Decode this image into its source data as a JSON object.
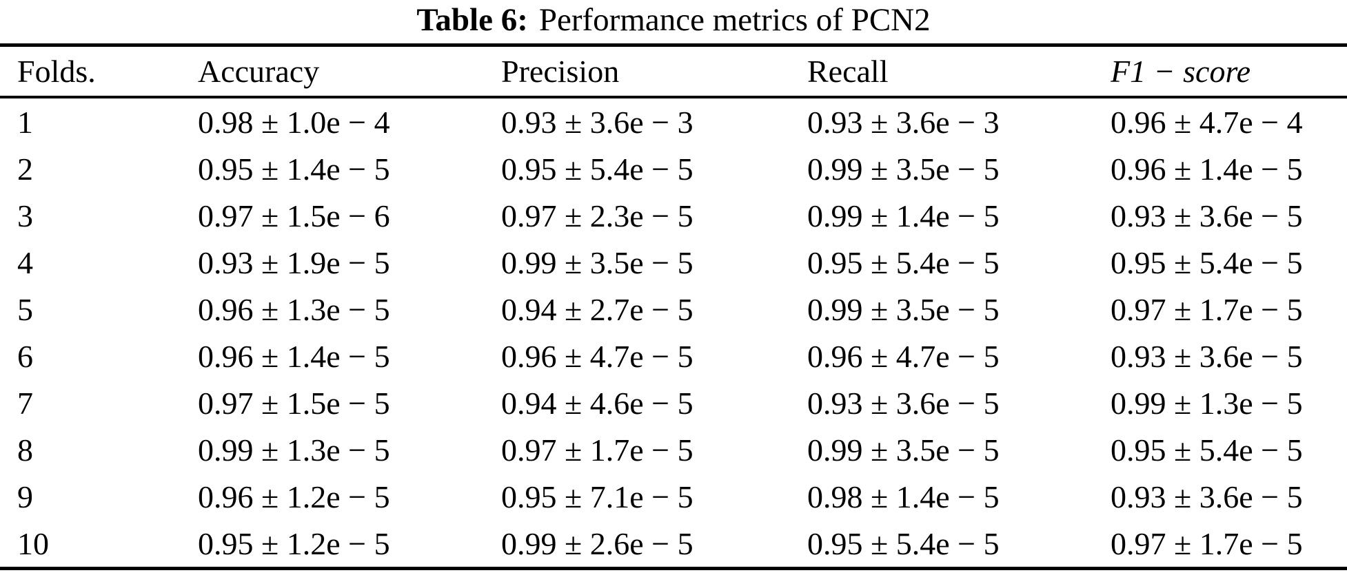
{
  "title": {
    "label": "Table 6:",
    "text": "Performance metrics of PCN2"
  },
  "table": {
    "columns": [
      "Folds.",
      "Accuracy",
      "Precision",
      "Recall",
      "F1 − score"
    ],
    "rows": [
      [
        "1",
        "0.98 ± 1.0e − 4",
        "0.93 ± 3.6e − 3",
        "0.93 ± 3.6e − 3",
        "0.96 ± 4.7e − 4"
      ],
      [
        "2",
        "0.95 ± 1.4e − 5",
        "0.95 ± 5.4e − 5",
        "0.99 ± 3.5e − 5",
        "0.96 ± 1.4e − 5"
      ],
      [
        "3",
        "0.97 ± 1.5e − 6",
        "0.97 ± 2.3e − 5",
        "0.99 ± 1.4e − 5",
        "0.93 ± 3.6e − 5"
      ],
      [
        "4",
        "0.93 ± 1.9e − 5",
        "0.99 ± 3.5e − 5",
        "0.95 ± 5.4e − 5",
        "0.95 ± 5.4e − 5"
      ],
      [
        "5",
        "0.96 ± 1.3e − 5",
        "0.94 ± 2.7e − 5",
        "0.99 ± 3.5e − 5",
        "0.97 ± 1.7e − 5"
      ],
      [
        "6",
        "0.96 ± 1.4e − 5",
        "0.96 ± 4.7e − 5",
        "0.96 ± 4.7e − 5",
        "0.93 ± 3.6e − 5"
      ],
      [
        "7",
        "0.97 ± 1.5e − 5",
        "0.94 ± 4.6e − 5",
        "0.93 ± 3.6e − 5",
        "0.99 ± 1.3e − 5"
      ],
      [
        "8",
        "0.99 ± 1.3e − 5",
        "0.97 ± 1.7e − 5",
        "0.99 ± 3.5e − 5",
        "0.95 ± 5.4e − 5"
      ],
      [
        "9",
        "0.96 ± 1.2e − 5",
        "0.95 ± 7.1e − 5",
        "0.98 ± 1.4e − 5",
        "0.93 ± 3.6e − 5"
      ],
      [
        "10",
        "0.95 ± 1.2e − 5",
        "0.99 ± 2.6e − 5",
        "0.95 ± 5.4e − 5",
        "0.97 ± 1.7e − 5"
      ]
    ]
  },
  "colors": {
    "text": "#000000",
    "background": "#ffffff",
    "rule": "#000000"
  }
}
